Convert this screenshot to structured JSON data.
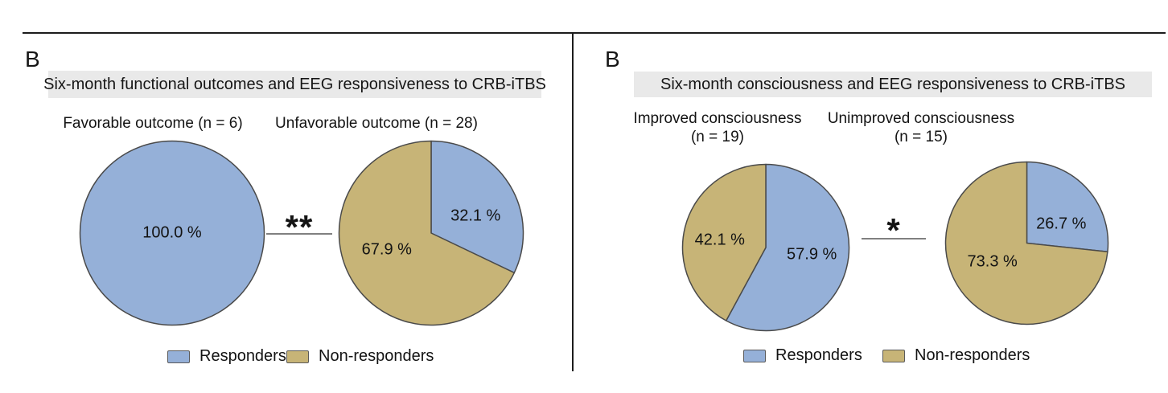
{
  "colors": {
    "responders_blue": "#95b0d8",
    "non_responders_tan": "#c7b477",
    "slice_border": "#4a4a4a",
    "header_bg": "#e9e9e9",
    "sig_line": "#808080",
    "frame_line": "#1c1c1c"
  },
  "panels": [
    {
      "label": "B",
      "header": "Six-month functional outcomes and EEG responsiveness to CRB-iTBS",
      "significance": "**",
      "legend": [
        {
          "label": "Responders",
          "color": "#95b0d8"
        },
        {
          "label": "Non-responders",
          "color": "#c7b477"
        }
      ]
    },
    {
      "label": "B",
      "header": "Six-month consciousness and EEG responsiveness to CRB-iTBS",
      "significance": "*",
      "legend": [
        {
          "label": "Responders",
          "color": "#95b0d8"
        },
        {
          "label": "Non-responders",
          "color": "#c7b477"
        }
      ]
    }
  ],
  "chart_data": [
    {
      "type": "pie",
      "panel": 0,
      "title": "Favorable outcome (n = 6)",
      "n": 6,
      "start_angle_deg": 0,
      "direction": "clockwise",
      "slices": [
        {
          "name": "Responders",
          "value_pct": 100.0,
          "label": "100.0 %",
          "color": "#95b0d8"
        }
      ]
    },
    {
      "type": "pie",
      "panel": 0,
      "title": "Unfavorable outcome (n = 28)",
      "n": 28,
      "start_angle_deg": 0,
      "direction": "clockwise",
      "slices": [
        {
          "name": "Responders",
          "value_pct": 32.1,
          "label": "32.1 %",
          "color": "#95b0d8"
        },
        {
          "name": "Non-responders",
          "value_pct": 67.9,
          "label": "67.9 %",
          "color": "#c7b477"
        }
      ]
    },
    {
      "type": "pie",
      "panel": 1,
      "title": "Improved consciousness",
      "subtitle": "(n = 19)",
      "n": 19,
      "start_angle_deg": 0,
      "direction": "clockwise",
      "slices": [
        {
          "name": "Responders",
          "value_pct": 57.9,
          "label": "57.9 %",
          "color": "#95b0d8"
        },
        {
          "name": "Non-responders",
          "value_pct": 42.1,
          "label": "42.1 %",
          "color": "#c7b477"
        }
      ]
    },
    {
      "type": "pie",
      "panel": 1,
      "title": "Unimproved consciousness",
      "subtitle": "(n = 15)",
      "n": 15,
      "start_angle_deg": 0,
      "direction": "clockwise",
      "slices": [
        {
          "name": "Responders",
          "value_pct": 26.7,
          "label": "26.7 %",
          "color": "#95b0d8"
        },
        {
          "name": "Non-responders",
          "value_pct": 73.3,
          "label": "73.3 %",
          "color": "#c7b477"
        }
      ]
    }
  ]
}
